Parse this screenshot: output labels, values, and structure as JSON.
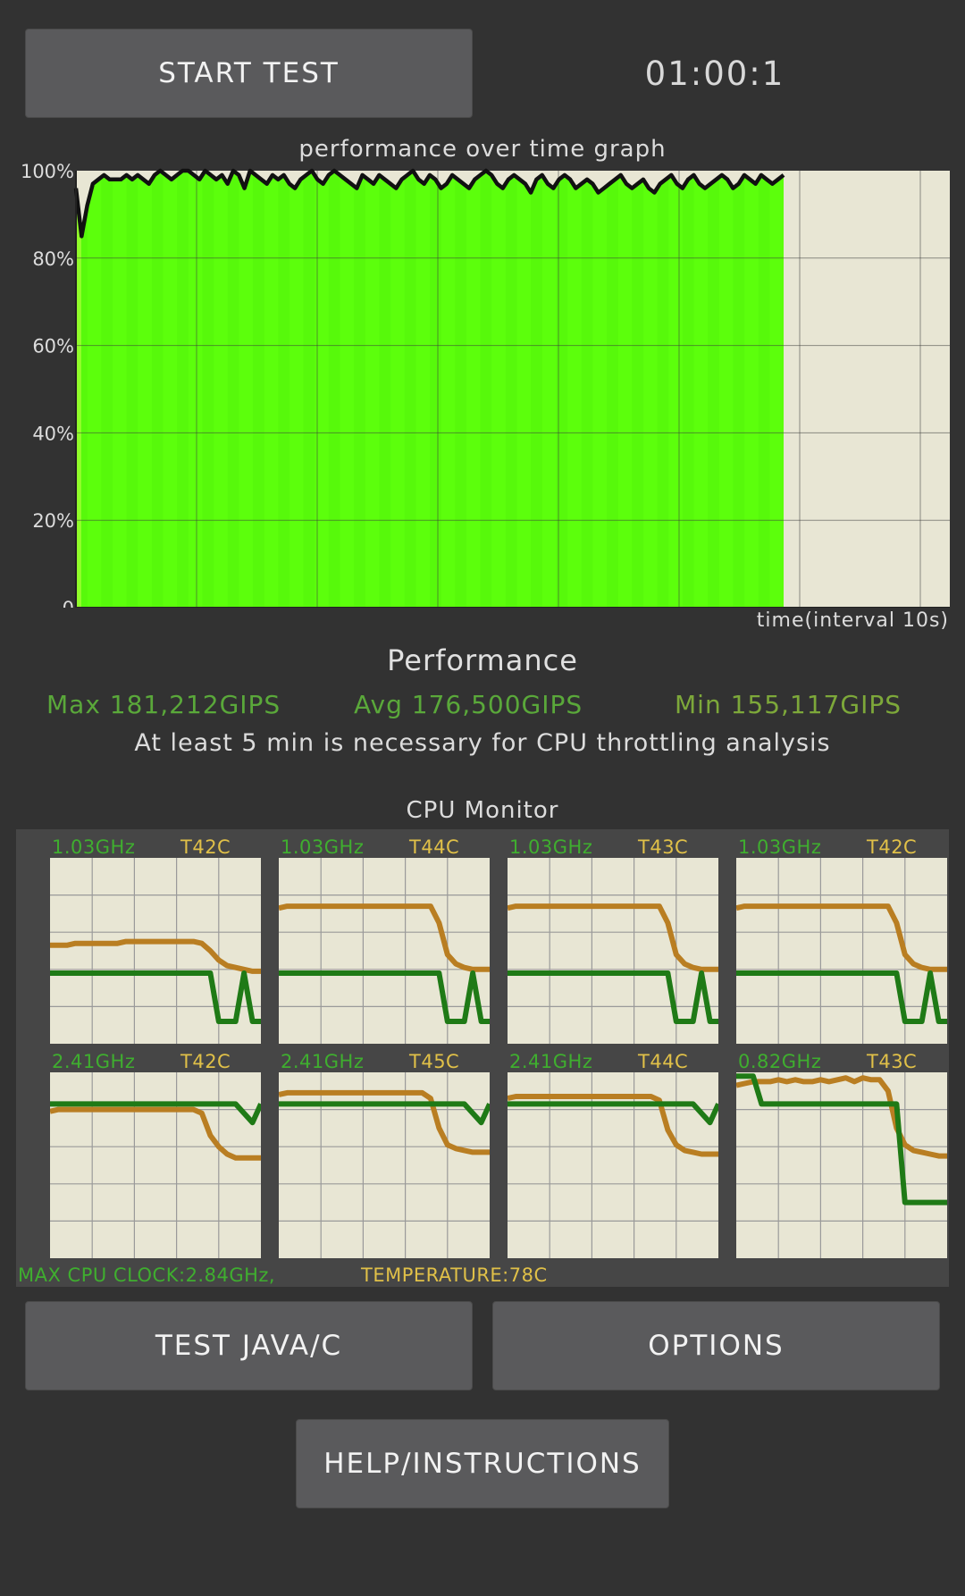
{
  "header": {
    "start_button": "START TEST",
    "timer": "01:00:1"
  },
  "perf_graph": {
    "title": "performance over time graph",
    "time_label": "time(interval 10s)",
    "y_ticks": [
      "100%",
      "80%",
      "60%",
      "40%",
      "20%",
      "0"
    ],
    "fill_color": "#5cff0c",
    "line_color": "#111111",
    "background_color": "#e8e6d4",
    "chart_data": {
      "type": "area",
      "y_unit": "%",
      "ylim": [
        0,
        100
      ],
      "grid": true,
      "values": [
        96,
        85,
        92,
        97,
        98,
        99,
        98,
        98,
        98,
        99,
        98,
        99,
        98,
        97,
        99,
        100,
        99,
        98,
        99,
        100,
        100,
        99,
        98,
        100,
        99,
        98,
        99,
        97,
        100,
        99,
        96,
        100,
        99,
        98,
        97,
        99,
        98,
        99,
        97,
        96,
        98,
        99,
        100,
        98,
        97,
        99,
        100,
        99,
        98,
        97,
        96,
        99,
        98,
        97,
        99,
        98,
        97,
        96,
        98,
        99,
        100,
        98,
        97,
        99,
        98,
        96,
        97,
        99,
        98,
        97,
        96,
        98,
        99,
        100,
        99,
        97,
        96,
        98,
        99,
        98,
        97,
        95,
        98,
        99,
        97,
        96,
        98,
        99,
        98,
        96,
        97,
        98,
        97,
        95,
        96,
        97,
        98,
        99,
        97,
        96,
        97,
        98,
        96,
        95,
        97,
        98,
        99,
        97,
        96,
        98,
        99,
        97,
        96,
        97,
        98,
        99,
        98,
        96,
        97,
        99,
        98,
        97,
        99,
        98,
        97,
        98,
        99
      ]
    }
  },
  "performance": {
    "heading": "Performance",
    "max": "Max 181,212GIPS",
    "avg": "Avg 176,500GIPS",
    "min": "Min 155,117GIPS",
    "note": "At least 5 min is necessary for CPU throttling analysis"
  },
  "cpu_monitor": {
    "title": "CPU Monitor",
    "freq_color": "#1f7a16",
    "temp_color": "#b97e22",
    "cores": [
      {
        "freq": "1.03GHz",
        "temp": "T42C"
      },
      {
        "freq": "1.03GHz",
        "temp": "T44C"
      },
      {
        "freq": "1.03GHz",
        "temp": "T43C"
      },
      {
        "freq": "1.03GHz",
        "temp": "T42C"
      },
      {
        "freq": "2.41GHz",
        "temp": "T42C"
      },
      {
        "freq": "2.41GHz",
        "temp": "T45C"
      },
      {
        "freq": "2.41GHz",
        "temp": "T44C"
      },
      {
        "freq": "0.82GHz",
        "temp": "T43C"
      }
    ],
    "max_clock": "MAX CPU CLOCK:2.84GHz,",
    "max_temp": "TEMPERATURE:78C"
  },
  "footer": {
    "test_java": "TEST JAVA/C",
    "options": "OPTIONS",
    "help": "HELP/INSTRUCTIONS"
  }
}
